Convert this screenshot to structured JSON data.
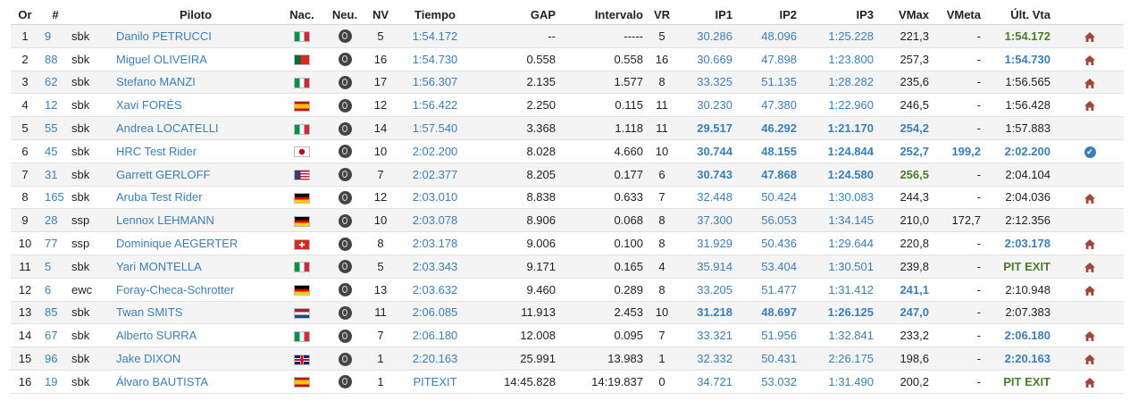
{
  "headers": [
    "Or",
    "#",
    "",
    "Piloto",
    "Nac.",
    "Neu.",
    "NV",
    "Tiempo",
    "GAP",
    "Intervalo",
    "VR",
    "IP1",
    "IP2",
    "IP3",
    "VMax",
    "VMeta",
    "Últ. Vta",
    ""
  ],
  "rows": [
    {
      "or": "1",
      "num": "9",
      "cat": "sbk",
      "name": "Danilo PETRUCCI",
      "flag": "it",
      "nv": "5",
      "tiempo": "1:54.172",
      "gap": "--",
      "int": "-----",
      "vr": "5",
      "ip1": "30.286",
      "ip2": "48.096",
      "ip3": "1:25.228",
      "vmax": "221,3",
      "vmeta": "-",
      "ult": "1:54.172",
      "ip1s": "blue",
      "ip2s": "blue",
      "ip3s": "blue",
      "vmaxs": "",
      "ults": "gb",
      "icon": "home"
    },
    {
      "or": "2",
      "num": "88",
      "cat": "sbk",
      "name": "Miguel OLIVEIRA",
      "flag": "pt",
      "nv": "16",
      "tiempo": "1:54.730",
      "gap": "0.558",
      "int": "0.558",
      "vr": "16",
      "ip1": "30.669",
      "ip2": "47.898",
      "ip3": "1:23.800",
      "vmax": "257,3",
      "vmeta": "-",
      "ult": "1:54.730",
      "ip1s": "blue",
      "ip2s": "blue",
      "ip3s": "blue",
      "vmaxs": "",
      "ults": "bb",
      "icon": "home"
    },
    {
      "or": "3",
      "num": "62",
      "cat": "sbk",
      "name": "Stefano MANZI",
      "flag": "it",
      "nv": "17",
      "tiempo": "1:56.307",
      "gap": "2.135",
      "int": "1.577",
      "vr": "8",
      "ip1": "33.325",
      "ip2": "51.135",
      "ip3": "1:28.282",
      "vmax": "235,6",
      "vmeta": "-",
      "ult": "1:56.565",
      "ip1s": "blue",
      "ip2s": "blue",
      "ip3s": "blue",
      "vmaxs": "",
      "ults": "",
      "icon": "home"
    },
    {
      "or": "4",
      "num": "12",
      "cat": "sbk",
      "name": "Xavi FORÉS",
      "flag": "es",
      "nv": "12",
      "tiempo": "1:56.422",
      "gap": "2.250",
      "int": "0.115",
      "vr": "11",
      "ip1": "30.230",
      "ip2": "47.380",
      "ip3": "1:22.960",
      "vmax": "246,5",
      "vmeta": "-",
      "ult": "1:56.428",
      "ip1s": "blue",
      "ip2s": "blue",
      "ip3s": "blue",
      "vmaxs": "",
      "ults": "",
      "icon": "home"
    },
    {
      "or": "5",
      "num": "55",
      "cat": "sbk",
      "name": "Andrea LOCATELLI",
      "flag": "it",
      "nv": "14",
      "tiempo": "1:57.540",
      "gap": "3.368",
      "int": "1.118",
      "vr": "11",
      "ip1": "29.517",
      "ip2": "46.292",
      "ip3": "1:21.170",
      "vmax": "254,2",
      "vmeta": "-",
      "ult": "1:57.883",
      "ip1s": "bb",
      "ip2s": "bb",
      "ip3s": "bb",
      "vmaxs": "bb",
      "ults": "",
      "icon": ""
    },
    {
      "or": "6",
      "num": "45",
      "cat": "sbk",
      "name": "HRC Test Rider",
      "flag": "jp",
      "nv": "10",
      "tiempo": "2:02.200",
      "gap": "8.028",
      "int": "4.660",
      "vr": "10",
      "ip1": "30.744",
      "ip2": "48.155",
      "ip3": "1:24.844",
      "vmax": "252,7",
      "vmeta": "199,2",
      "ult": "2:02.200",
      "ip1s": "bb",
      "ip2s": "bb",
      "ip3s": "bb",
      "vmaxs": "bb",
      "vmetas": "bb",
      "ults": "bb",
      "icon": "check"
    },
    {
      "or": "7",
      "num": "31",
      "cat": "sbk",
      "name": "Garrett GERLOFF",
      "flag": "us",
      "nv": "7",
      "tiempo": "2:02.377",
      "gap": "8.205",
      "int": "0.177",
      "vr": "6",
      "ip1": "30.743",
      "ip2": "47.868",
      "ip3": "1:24.580",
      "vmax": "256,5",
      "vmeta": "-",
      "ult": "2:04.104",
      "ip1s": "bb",
      "ip2s": "bb",
      "ip3s": "bb",
      "vmaxs": "gb",
      "ults": "",
      "icon": ""
    },
    {
      "or": "8",
      "num": "165",
      "cat": "sbk",
      "name": "Aruba Test Rider",
      "flag": "de",
      "nv": "12",
      "tiempo": "2:03.010",
      "gap": "8.838",
      "int": "0.633",
      "vr": "7",
      "ip1": "32.448",
      "ip2": "50.424",
      "ip3": "1:30.083",
      "vmax": "244,3",
      "vmeta": "-",
      "ult": "2:04.036",
      "ip1s": "blue",
      "ip2s": "blue",
      "ip3s": "blue",
      "vmaxs": "",
      "ults": "",
      "icon": "home"
    },
    {
      "or": "9",
      "num": "28",
      "cat": "ssp",
      "name": "Lennox LEHMANN",
      "flag": "de",
      "nv": "10",
      "tiempo": "2:03.078",
      "gap": "8.906",
      "int": "0.068",
      "vr": "8",
      "ip1": "37.300",
      "ip2": "56.053",
      "ip3": "1:34.145",
      "vmax": "210,0",
      "vmeta": "172,7",
      "ult": "2:12.356",
      "ip1s": "blue",
      "ip2s": "blue",
      "ip3s": "blue",
      "vmaxs": "",
      "ults": "",
      "icon": ""
    },
    {
      "or": "10",
      "num": "77",
      "cat": "ssp",
      "name": "Dominique AEGERTER",
      "flag": "ch",
      "nv": "8",
      "tiempo": "2:03.178",
      "gap": "9.006",
      "int": "0.100",
      "vr": "8",
      "ip1": "31.929",
      "ip2": "50.436",
      "ip3": "1:29.644",
      "vmax": "220,8",
      "vmeta": "-",
      "ult": "2:03.178",
      "ip1s": "blue",
      "ip2s": "blue",
      "ip3s": "blue",
      "vmaxs": "",
      "ults": "bb",
      "icon": "home"
    },
    {
      "or": "11",
      "num": "5",
      "cat": "sbk",
      "name": "Yari MONTELLA",
      "flag": "it",
      "nv": "5",
      "tiempo": "2:03.343",
      "gap": "9.171",
      "int": "0.165",
      "vr": "4",
      "ip1": "35.914",
      "ip2": "53.404",
      "ip3": "1:30.501",
      "vmax": "239,8",
      "vmeta": "-",
      "ult": "PIT EXIT",
      "ip1s": "blue",
      "ip2s": "blue",
      "ip3s": "blue",
      "vmaxs": "",
      "ults": "gb",
      "icon": "home"
    },
    {
      "or": "12",
      "num": "6",
      "cat": "ewc",
      "name": "Foray-Checa-Schrotter",
      "flag": "de",
      "nv": "13",
      "tiempo": "2:03.632",
      "gap": "9.460",
      "int": "0.289",
      "vr": "8",
      "ip1": "33.205",
      "ip2": "51.477",
      "ip3": "1:31.412",
      "vmax": "241,1",
      "vmeta": "-",
      "ult": "2:10.948",
      "ip1s": "blue",
      "ip2s": "blue",
      "ip3s": "blue",
      "vmaxs": "bb",
      "ults": "",
      "icon": "home"
    },
    {
      "or": "13",
      "num": "85",
      "cat": "sbk",
      "name": "Twan SMITS",
      "flag": "nl",
      "nv": "11",
      "tiempo": "2:06.085",
      "gap": "11.913",
      "int": "2.453",
      "vr": "10",
      "ip1": "31.218",
      "ip2": "48.697",
      "ip3": "1:26.125",
      "vmax": "247,0",
      "vmeta": "-",
      "ult": "2:07.383",
      "ip1s": "bb",
      "ip2s": "bb",
      "ip3s": "bb",
      "vmaxs": "bb",
      "ults": "",
      "icon": ""
    },
    {
      "or": "14",
      "num": "67",
      "cat": "sbk",
      "name": "Alberto SURRA",
      "flag": "it",
      "nv": "7",
      "tiempo": "2:06.180",
      "gap": "12.008",
      "int": "0.095",
      "vr": "7",
      "ip1": "33.321",
      "ip2": "51.956",
      "ip3": "1:32.841",
      "vmax": "233,2",
      "vmeta": "-",
      "ult": "2:06.180",
      "ip1s": "blue",
      "ip2s": "blue",
      "ip3s": "blue",
      "vmaxs": "",
      "ults": "bb",
      "icon": "home"
    },
    {
      "or": "15",
      "num": "96",
      "cat": "sbk",
      "name": "Jake DIXON",
      "flag": "gb",
      "nv": "1",
      "tiempo": "2:20.163",
      "gap": "25.991",
      "int": "13.983",
      "vr": "1",
      "ip1": "32.332",
      "ip2": "50.431",
      "ip3": "2:26.175",
      "vmax": "198,6",
      "vmeta": "-",
      "ult": "2:20.163",
      "ip1s": "blue",
      "ip2s": "blue",
      "ip3s": "blue",
      "vmaxs": "",
      "ults": "bb",
      "icon": "home"
    },
    {
      "or": "16",
      "num": "19",
      "cat": "sbk",
      "name": "Álvaro BAUTISTA",
      "flag": "es",
      "nv": "1",
      "tiempo": "PITEXIT",
      "gap": "14:45.828",
      "int": "14:19.837",
      "vr": "0",
      "ip1": "34.721",
      "ip2": "53.032",
      "ip3": "1:31.490",
      "vmax": "200,2",
      "vmeta": "-",
      "ult": "PIT EXIT",
      "ip1s": "blue",
      "ip2s": "blue",
      "ip3s": "blue",
      "vmaxs": "",
      "ults": "gb",
      "icon": "home"
    }
  ],
  "colors": {
    "link": "#3b7fb8",
    "green": "#4a7d2a",
    "home": "#a0463c",
    "check": "#3b7fb8"
  },
  "icons": {
    "tyre": "tyre-icon",
    "home": "home-icon",
    "check": "check-circle-icon"
  }
}
